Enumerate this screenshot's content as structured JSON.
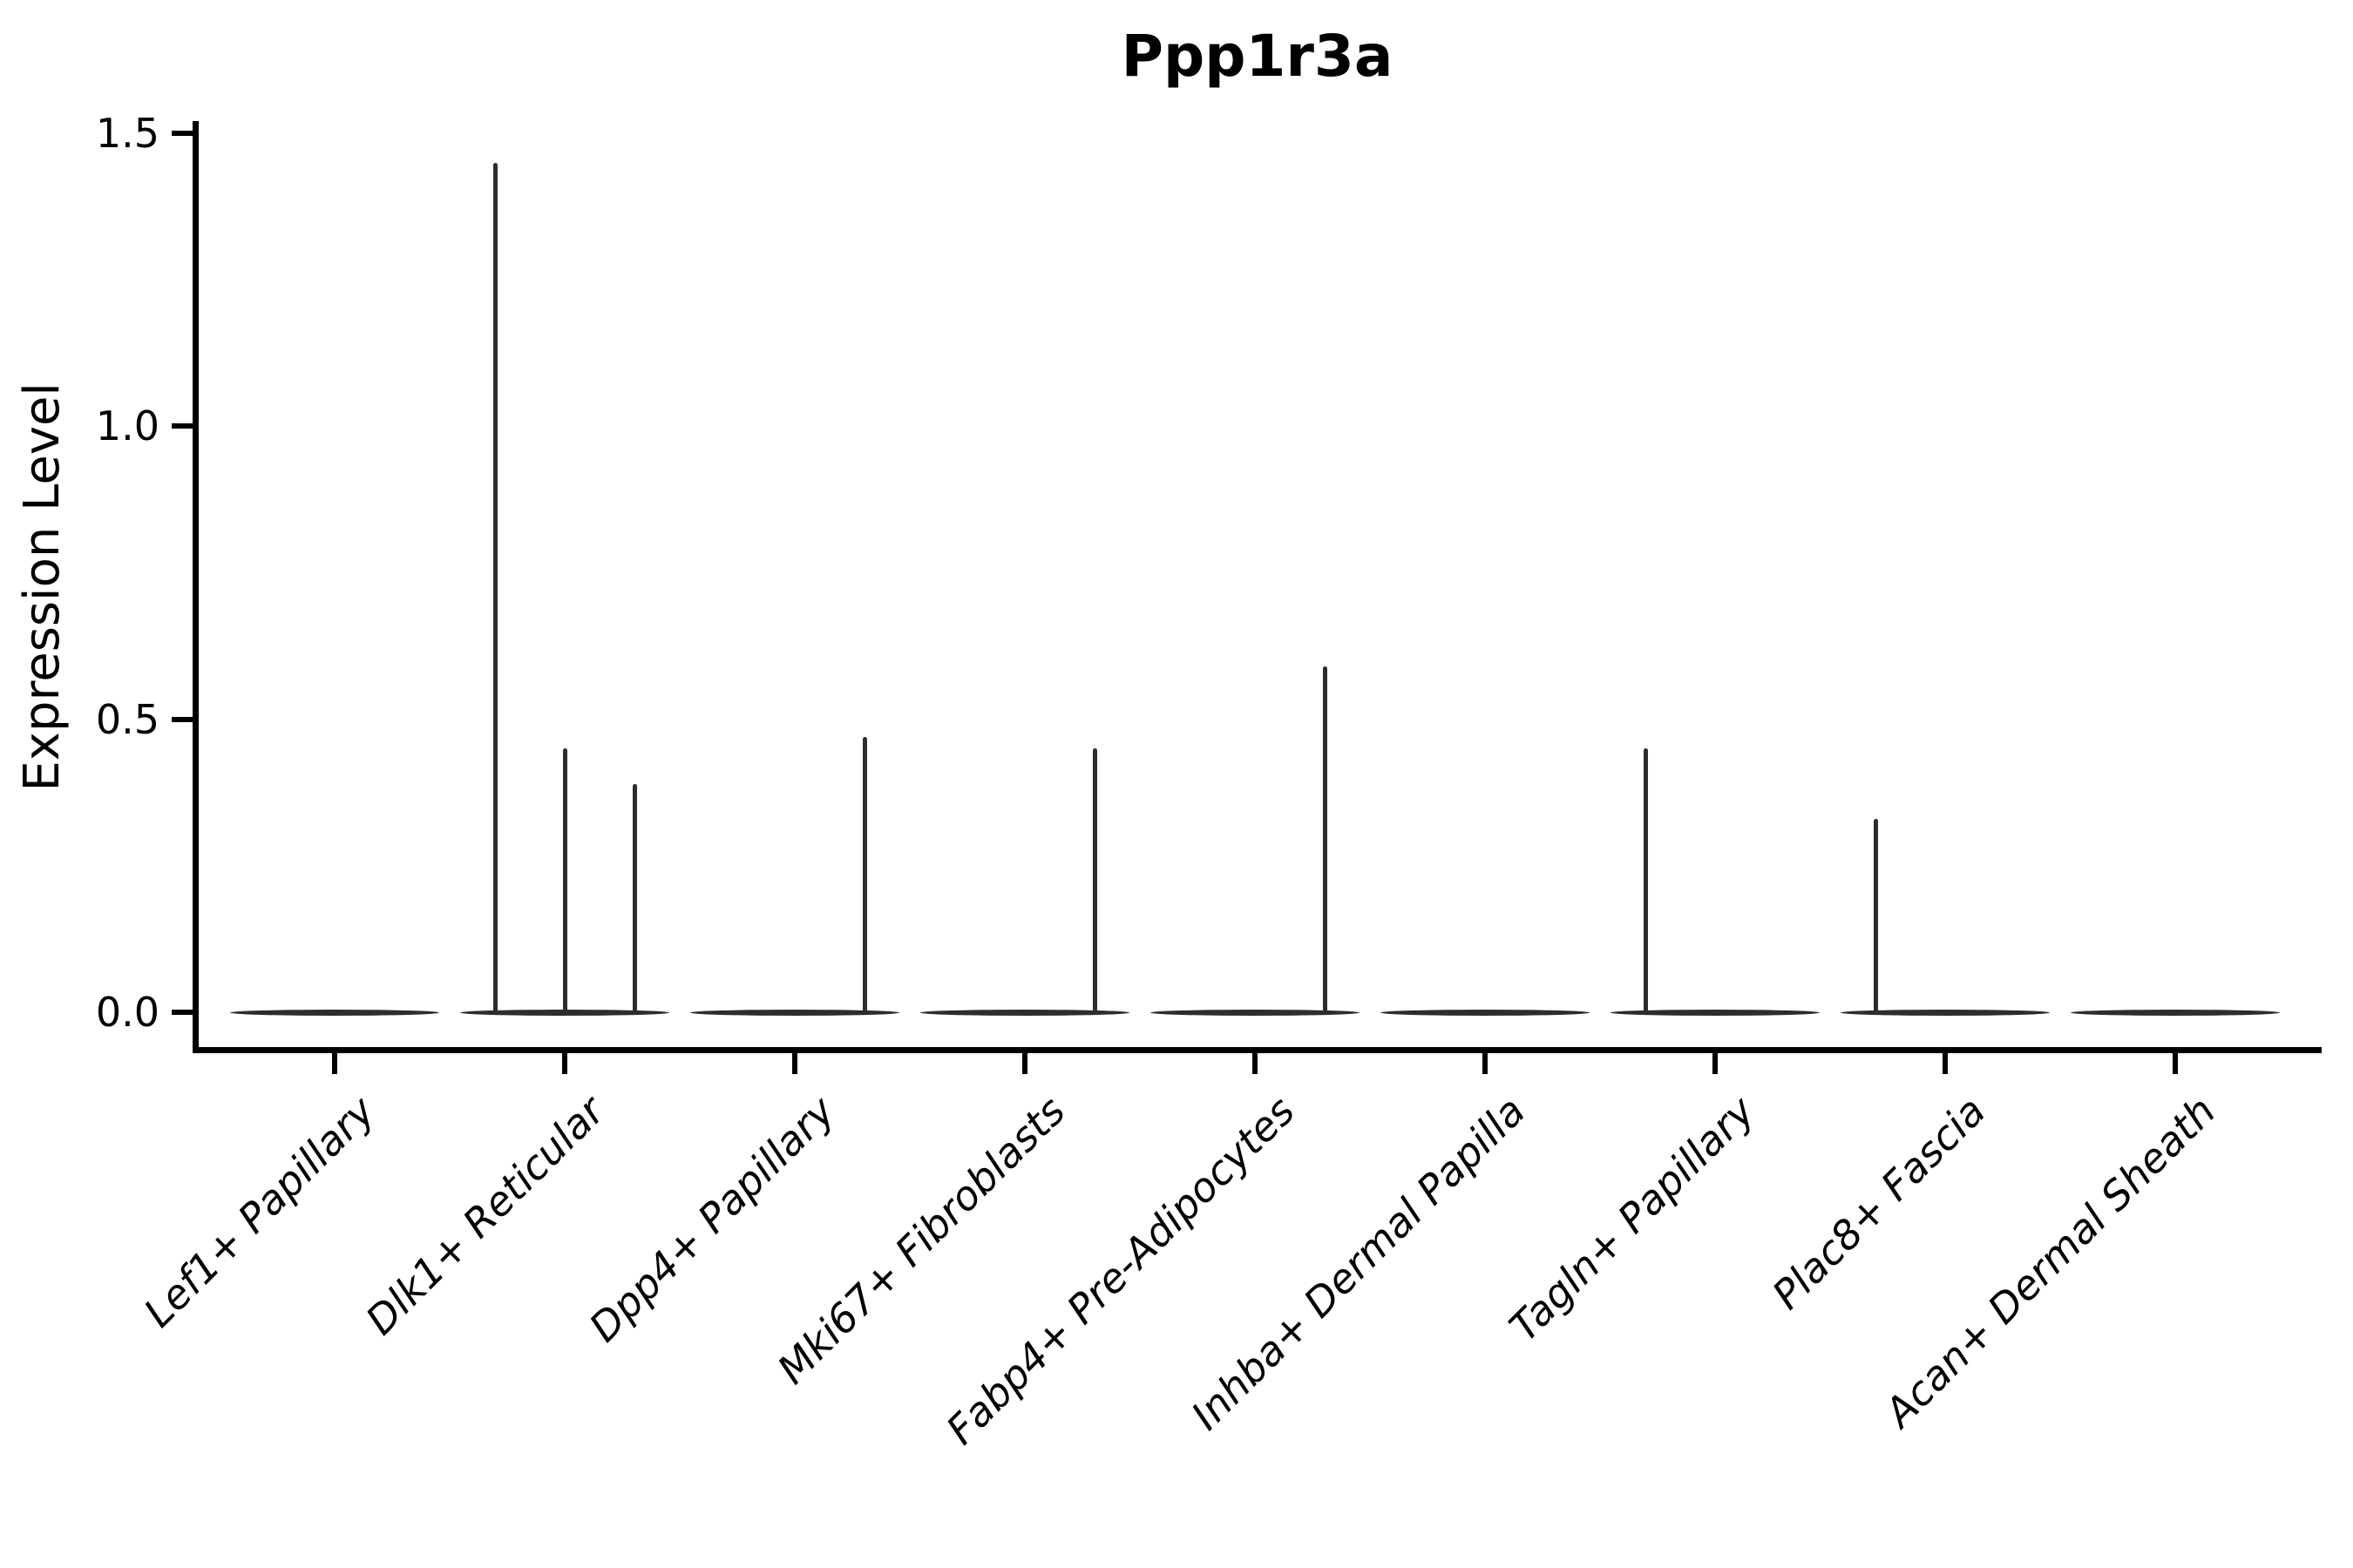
{
  "title": "Ppp1r3a",
  "y_axis": {
    "label": "Expression Level",
    "tick_labels": [
      "0.0",
      "0.5",
      "1.0",
      "1.5"
    ]
  },
  "chart_data": {
    "type": "violin",
    "title": "Ppp1r3a",
    "xlabel": "",
    "ylabel": "Expression Level",
    "ylim": [
      -0.07,
      1.52
    ],
    "yticks": [
      0.0,
      0.5,
      1.0,
      1.5
    ],
    "grid": false,
    "legend": "none",
    "subviolins_per_category": 3,
    "colors": {
      "violin": "#2d2d2d",
      "axis": "#000000",
      "background": "#ffffff"
    },
    "categories": [
      "Lef1+ Papillary",
      "Dlk1+ Reticular",
      "Dpp4+ Papillary",
      "Mki67+ Fibroblasts",
      "Fabp4+ Pre-Adipocytes",
      "Inhba+ Dermal Papilla",
      "Tagln+ Papillary",
      "Plac8+ Fascia",
      "Acan+ Dermal Sheath"
    ],
    "violins": [
      {
        "category": "Lef1+ Papillary",
        "baseline_value": 0.0,
        "spikes": []
      },
      {
        "category": "Dlk1+ Reticular",
        "baseline_value": 0.0,
        "spikes": [
          {
            "pos": -1,
            "value": 1.45
          },
          {
            "pos": 0,
            "value": 0.45
          },
          {
            "pos": 1,
            "value": 0.39
          }
        ]
      },
      {
        "category": "Dpp4+ Papillary",
        "baseline_value": 0.0,
        "spikes": [
          {
            "pos": 1,
            "value": 0.47
          }
        ]
      },
      {
        "category": "Mki67+ Fibroblasts",
        "baseline_value": 0.0,
        "spikes": [
          {
            "pos": 1,
            "value": 0.45
          }
        ]
      },
      {
        "category": "Fabp4+ Pre-Adipocytes",
        "baseline_value": 0.0,
        "spikes": [
          {
            "pos": 1,
            "value": 0.59
          }
        ]
      },
      {
        "category": "Inhba+ Dermal Papilla",
        "baseline_value": 0.0,
        "spikes": []
      },
      {
        "category": "Tagln+ Papillary",
        "baseline_value": 0.0,
        "spikes": [
          {
            "pos": -1,
            "value": 0.45
          }
        ]
      },
      {
        "category": "Plac8+ Fascia",
        "baseline_value": 0.0,
        "spikes": [
          {
            "pos": -1,
            "value": 0.33
          }
        ]
      },
      {
        "category": "Acan+ Dermal Sheath",
        "baseline_value": 0.0,
        "spikes": []
      }
    ]
  }
}
